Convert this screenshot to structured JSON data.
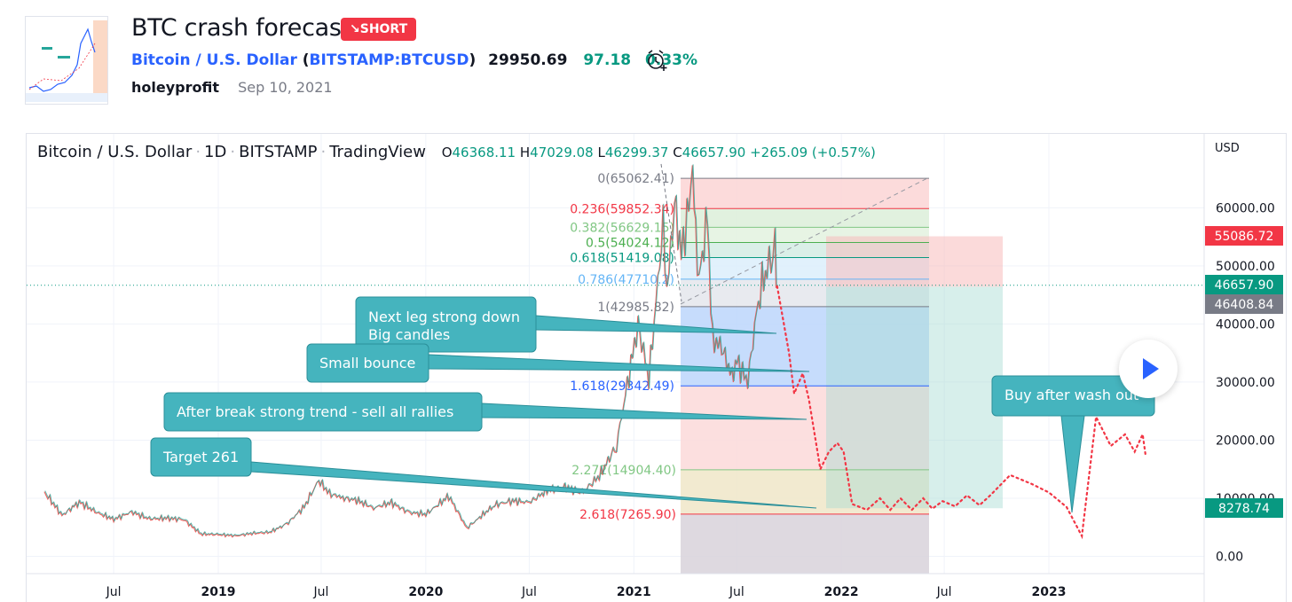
{
  "header": {
    "title": "BTC crash forecast",
    "badge": "↘SHORT",
    "symbol_name": "Bitcoin / U.S. Dollar",
    "symbol_ticker": "BITSTAMP:BTCUSD",
    "price": "29950.69",
    "change": "97.18",
    "change_pct": "0.33%",
    "author": "holeyprofit",
    "date": "Sep 10, 2021"
  },
  "chart_legend": {
    "name": "Bitcoin / U.S. Dollar",
    "interval": "1D",
    "exchange": "BITSTAMP",
    "source": "TradingView",
    "open": "46368.11",
    "high": "47029.08",
    "low": "46299.37",
    "close": "46657.90",
    "change": "+265.09 (+0.57%)"
  },
  "chart_data": {
    "type": "line",
    "currency": "USD",
    "y_ticks": [
      "60000.00",
      "50000.00",
      "40000.00",
      "30000.00",
      "20000.00",
      "10000.00",
      "0.00"
    ],
    "x_ticks": [
      "Jul",
      "2019",
      "Jul",
      "2020",
      "Jul",
      "2021",
      "Jul",
      "2022",
      "Jul",
      "2023"
    ],
    "price_labels": [
      {
        "value": "55086.72",
        "color": "#f23645"
      },
      {
        "value": "46657.90",
        "color": "#089981"
      },
      {
        "value": "46408.84",
        "color": "#787b86"
      },
      {
        "value": "8278.74",
        "color": "#089981"
      }
    ],
    "fib_levels": [
      {
        "label": "0(65062.41)",
        "value": 65062.41,
        "color": "#787b86"
      },
      {
        "label": "0.236(59852.34)",
        "value": 59852.34,
        "color": "#f23645"
      },
      {
        "label": "0.382(56629.15)",
        "value": 56629.15,
        "color": "#81c784"
      },
      {
        "label": "0.5(54024.12)",
        "value": 54024.12,
        "color": "#4caf50"
      },
      {
        "label": "0.618(51419.08)",
        "value": 51419.08,
        "color": "#089981"
      },
      {
        "label": "0.786(47710.2)",
        "value": 47710.2,
        "color": "#64b5f6"
      },
      {
        "label": "1(42985.82)",
        "value": 42985.82,
        "color": "#787b86"
      },
      {
        "label": "1.618(29342.49)",
        "value": 29342.49,
        "color": "#2962ff"
      },
      {
        "label": "2.272(14904.40)",
        "value": 14904.4,
        "color": "#81c784"
      },
      {
        "label": "2.618(7265.90)",
        "value": 7265.9,
        "color": "#f23645"
      }
    ],
    "annotations": [
      {
        "line1": "Next leg strong down",
        "line2": "Big candles"
      },
      {
        "line1": "Small bounce"
      },
      {
        "line1": "After break strong trend - sell all rallies"
      },
      {
        "line1": "Target 261"
      },
      {
        "line1": "Buy after wash out"
      }
    ],
    "price_history": [
      [
        "2018-03-01",
        11000
      ],
      [
        "2018-04-01",
        7000
      ],
      [
        "2018-05-01",
        9300
      ],
      [
        "2018-06-01",
        7500
      ],
      [
        "2018-07-01",
        6300
      ],
      [
        "2018-08-01",
        7600
      ],
      [
        "2018-09-01",
        6400
      ],
      [
        "2018-10-01",
        6500
      ],
      [
        "2018-11-01",
        6300
      ],
      [
        "2018-12-01",
        3800
      ],
      [
        "2019-01-01",
        3700
      ],
      [
        "2019-02-01",
        3500
      ],
      [
        "2019-03-01",
        3900
      ],
      [
        "2019-04-01",
        4100
      ],
      [
        "2019-05-01",
        5500
      ],
      [
        "2019-06-01",
        8500
      ],
      [
        "2019-06-26",
        13000
      ],
      [
        "2019-07-15",
        10800
      ],
      [
        "2019-08-01",
        10100
      ],
      [
        "2019-09-01",
        9600
      ],
      [
        "2019-10-01",
        8300
      ],
      [
        "2019-11-01",
        9200
      ],
      [
        "2019-12-01",
        7500
      ],
      [
        "2020-01-01",
        7200
      ],
      [
        "2020-02-10",
        10300
      ],
      [
        "2020-03-13",
        4800
      ],
      [
        "2020-04-01",
        6400
      ],
      [
        "2020-05-01",
        8800
      ],
      [
        "2020-06-01",
        9500
      ],
      [
        "2020-07-01",
        9200
      ],
      [
        "2020-08-01",
        11300
      ],
      [
        "2020-09-01",
        11900
      ],
      [
        "2020-10-01",
        10800
      ],
      [
        "2020-11-01",
        13800
      ],
      [
        "2020-12-01",
        19000
      ],
      [
        "2021-01-08",
        40000
      ],
      [
        "2021-01-27",
        30500
      ],
      [
        "2021-02-21",
        57000
      ],
      [
        "2021-02-28",
        45200
      ],
      [
        "2021-03-13",
        61200
      ],
      [
        "2021-03-25",
        51700
      ],
      [
        "2021-04-14",
        64800
      ],
      [
        "2021-04-25",
        47700
      ],
      [
        "2021-05-10",
        58000
      ],
      [
        "2021-05-19",
        37000
      ],
      [
        "2021-06-01",
        36700
      ],
      [
        "2021-06-22",
        31000
      ],
      [
        "2021-07-01",
        33500
      ],
      [
        "2021-07-20",
        29800
      ],
      [
        "2021-08-01",
        39800
      ],
      [
        "2021-08-14",
        47000
      ],
      [
        "2021-08-23",
        49500
      ],
      [
        "2021-09-06",
        52500
      ],
      [
        "2021-09-10",
        46600
      ]
    ],
    "forecast_path": [
      [
        "2021-09-10",
        46500
      ],
      [
        "2021-10-01",
        35000
      ],
      [
        "2021-10-10",
        28000
      ],
      [
        "2021-10-25",
        31500
      ],
      [
        "2021-11-05",
        27000
      ],
      [
        "2021-11-25",
        15000
      ],
      [
        "2021-12-10",
        18000
      ],
      [
        "2021-12-25",
        19500
      ],
      [
        "2022-01-05",
        18000
      ],
      [
        "2022-01-20",
        9000
      ],
      [
        "2022-02-15",
        8000
      ],
      [
        "2022-03-10",
        10000
      ],
      [
        "2022-03-28",
        8000
      ],
      [
        "2022-04-15",
        10000
      ],
      [
        "2022-05-05",
        8000
      ],
      [
        "2022-05-25",
        10000
      ],
      [
        "2022-06-10",
        8200
      ],
      [
        "2022-06-28",
        9500
      ],
      [
        "2022-07-20",
        8600
      ],
      [
        "2022-08-10",
        10500
      ],
      [
        "2022-09-01",
        8800
      ],
      [
        "2022-09-20",
        10500
      ],
      [
        "2022-10-25",
        14000
      ],
      [
        "2022-12-01",
        12500
      ],
      [
        "2023-01-01",
        11000
      ],
      [
        "2023-02-01",
        8500
      ],
      [
        "2023-02-28",
        3500
      ],
      [
        "2023-03-25",
        24000
      ],
      [
        "2023-04-20",
        19000
      ],
      [
        "2023-05-15",
        21000
      ],
      [
        "2023-06-01",
        18000
      ],
      [
        "2023-06-15",
        21000
      ],
      [
        "2023-06-20",
        17500
      ]
    ]
  }
}
